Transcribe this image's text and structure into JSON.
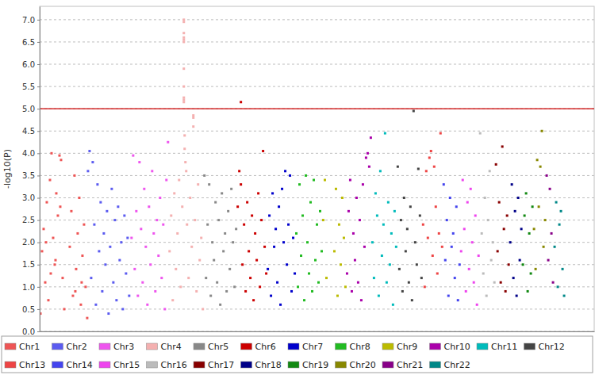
{
  "chart_data": {
    "type": "scatter",
    "y_label": "-log10(P)",
    "xlim": [
      0,
      700
    ],
    "ylim": [
      0,
      7.3
    ],
    "yticks": [
      {
        "value": 0,
        "label": "0.0"
      },
      0.5,
      {
        "value": 1,
        "label": "1.0"
      },
      1.5,
      {
        "value": 2,
        "label": "2.0"
      },
      2.5,
      {
        "value": 3,
        "label": "3.0"
      },
      3.5,
      {
        "value": 4,
        "label": "4.0"
      },
      4.5,
      {
        "value": 5,
        "label": "5.0"
      },
      5.5,
      {
        "value": 6,
        "label": "6.0"
      },
      6.5,
      {
        "value": 7,
        "label": "7.0"
      }
    ],
    "tick_labels": "y",
    "grid": true,
    "legend": "bottom",
    "marker": "square",
    "threshold": 5,
    "series": [
      {
        "name": "Chr1",
        "color": "#ee5555",
        "x": [
          1,
          3,
          5,
          7,
          9,
          11,
          13,
          15,
          17,
          19,
          21,
          23,
          25,
          27,
          29,
          31,
          38,
          40,
          42,
          44,
          46,
          48,
          50,
          52,
          54,
          56,
          58,
          60,
          8,
          14,
          20,
          26,
          45,
          53
        ],
        "values": [
          0.4,
          1.8,
          2.3,
          1.1,
          2.9,
          0.7,
          3.4,
          4.0,
          2.1,
          1.5,
          3.1,
          2.6,
          3.95,
          3.85,
          1.2,
          0.5,
          1.9,
          2.7,
          0.8,
          3.5,
          1.4,
          2.2,
          3.0,
          0.6,
          1.7,
          2.4,
          1.0,
          0.3,
          2.0,
          1.3,
          1.6,
          2.8,
          0.9,
          1.1
        ]
      },
      {
        "name": "Chr2",
        "color": "#5b5bf0",
        "x": [
          61,
          63,
          65,
          67,
          69,
          71,
          73,
          75,
          77,
          79,
          81,
          83,
          85,
          87,
          89,
          91,
          93,
          95,
          97,
          99,
          101,
          103,
          105,
          107,
          109,
          111,
          113
        ],
        "values": [
          3.6,
          4.05,
          1.2,
          3.8,
          2.4,
          0.6,
          3.3,
          1.8,
          2.9,
          0.9,
          2.2,
          1.5,
          2.7,
          0.4,
          1.9,
          3.2,
          1.1,
          2.5,
          0.7,
          2.8,
          1.6,
          2.0,
          0.5,
          2.6,
          1.3,
          2.1,
          0.8
        ]
      },
      {
        "name": "Chr3",
        "color": "#ee55ee",
        "x": [
          116,
          118,
          120,
          122,
          124,
          126,
          128,
          130,
          132,
          134,
          136,
          138,
          140,
          142,
          144,
          146,
          148,
          150,
          152,
          154,
          156,
          158,
          160,
          162
        ],
        "values": [
          2.1,
          3.95,
          1.4,
          2.7,
          0.8,
          3.8,
          2.3,
          1.1,
          3.2,
          1.9,
          0.6,
          2.8,
          1.5,
          3.6,
          2.2,
          0.9,
          2.5,
          1.7,
          3.0,
          1.2,
          2.4,
          0.5,
          3.4,
          4.25
        ]
      },
      {
        "name": "Chr4",
        "color": "#f4b0b0",
        "x": [
          164,
          166,
          168,
          170,
          172,
          174,
          176,
          178,
          180,
          182,
          182,
          182,
          182,
          182,
          182,
          182,
          182,
          182,
          182,
          182,
          183,
          183,
          184,
          185,
          186,
          188,
          190,
          192,
          194,
          194,
          194,
          196,
          198,
          200,
          202,
          204,
          206
        ],
        "values": [
          1.8,
          2.6,
          0.7,
          3.1,
          1.4,
          2.2,
          3.4,
          1.0,
          2.8,
          7.0,
          6.95,
          6.7,
          6.6,
          6.55,
          6.5,
          5.9,
          5.5,
          5.25,
          5.2,
          5.15,
          4.4,
          4.1,
          3.8,
          3.6,
          2.4,
          1.2,
          3.0,
          1.9,
          4.85,
          4.8,
          4.6,
          2.5,
          0.9,
          3.3,
          1.6,
          2.1,
          0.5
        ]
      },
      {
        "name": "Chr5",
        "color": "#888888",
        "x": [
          208,
          210,
          212,
          214,
          216,
          218,
          220,
          222,
          224,
          226,
          228,
          230,
          232,
          234,
          236,
          238,
          240,
          242,
          244,
          246,
          248
        ],
        "values": [
          3.5,
          1.2,
          2.4,
          3.3,
          0.8,
          2.0,
          1.6,
          2.9,
          1.1,
          2.5,
          0.6,
          3.1,
          1.8,
          2.2,
          0.9,
          2.7,
          1.4,
          3.2,
          2.0,
          1.0,
          2.3
        ]
      },
      {
        "name": "Chr6",
        "color": "#cc0000",
        "x": [
          250,
          252,
          254,
          256,
          258,
          260,
          262,
          264,
          266,
          268,
          270,
          272,
          274,
          276,
          278,
          280,
          282,
          284,
          286,
          254
        ],
        "values": [
          2.8,
          3.6,
          3.3,
          1.5,
          2.4,
          0.9,
          2.9,
          1.8,
          1.2,
          2.6,
          0.7,
          2.2,
          1.6,
          3.1,
          1.0,
          2.5,
          4.05,
          1.9,
          1.3,
          5.15
        ]
      },
      {
        "name": "Chr7",
        "color": "#0000cc",
        "x": [
          288,
          290,
          292,
          294,
          296,
          298,
          300,
          302,
          304,
          306,
          308,
          310,
          312,
          314,
          316,
          318,
          320,
          322
        ],
        "values": [
          1.4,
          2.6,
          0.8,
          3.1,
          1.9,
          2.3,
          1.1,
          2.8,
          0.6,
          3.2,
          2.0,
          3.6,
          1.5,
          2.4,
          3.5,
          0.9,
          2.1,
          1.3
        ]
      },
      {
        "name": "Chr8",
        "color": "#22bb22",
        "x": [
          324,
          326,
          328,
          330,
          332,
          334,
          336,
          338,
          340,
          342,
          344,
          346,
          348,
          350,
          352,
          354,
          356
        ],
        "values": [
          2.2,
          1.0,
          3.3,
          1.7,
          2.6,
          0.7,
          3.5,
          2.0,
          1.3,
          2.9,
          0.9,
          3.4,
          1.6,
          2.4,
          1.1,
          2.7,
          1.8
        ]
      },
      {
        "name": "Chr9",
        "color": "#bbbb00",
        "x": [
          358,
          360,
          362,
          372,
          374,
          376,
          378,
          380,
          382,
          384,
          386
        ],
        "values": [
          2.5,
          3.4,
          1.2,
          1.8,
          3.2,
          0.8,
          2.4,
          1.5,
          3.0,
          2.1,
          1.0
        ]
      },
      {
        "name": "Chr10",
        "color": "#aa00aa",
        "x": [
          388,
          390,
          392,
          394,
          396,
          398,
          400,
          402,
          404,
          406,
          408,
          410,
          412,
          414,
          416,
          418
        ],
        "values": [
          1.3,
          2.7,
          3.4,
          0.9,
          2.2,
          1.6,
          3.0,
          1.1,
          2.5,
          0.7,
          3.3,
          1.9,
          3.9,
          4.0,
          3.7,
          4.35
        ]
      },
      {
        "name": "Chr11",
        "color": "#00bbbb",
        "x": [
          420,
          422,
          424,
          426,
          428,
          430,
          432,
          434,
          436,
          438,
          440,
          442,
          444,
          446,
          448,
          450
        ],
        "values": [
          2.0,
          1.2,
          3.1,
          2.6,
          0.8,
          3.6,
          1.7,
          2.4,
          4.45,
          1.1,
          2.9,
          1.5,
          2.2,
          0.6,
          2.7,
          1.9
        ]
      },
      {
        "name": "Chr12",
        "color": "#444444",
        "x": [
          452,
          454,
          456,
          458,
          460,
          462,
          464,
          466,
          468,
          470,
          472,
          474,
          476,
          478,
          480,
          482
        ],
        "values": [
          3.7,
          1.4,
          2.5,
          0.9,
          3.0,
          1.8,
          2.3,
          1.1,
          2.8,
          0.7,
          4.95,
          2.0,
          1.5,
          3.65,
          2.6,
          1.2
        ]
      },
      {
        "name": "Chr13",
        "color": "#ee4444",
        "x": [
          484,
          486,
          488,
          490,
          492,
          494,
          496,
          498,
          500,
          502,
          504,
          506,
          508
        ],
        "values": [
          2.4,
          1.0,
          3.6,
          2.1,
          3.9,
          4.05,
          1.7,
          3.7,
          2.8,
          1.3,
          2.2,
          4.45,
          1.9
        ]
      },
      {
        "name": "Chr14",
        "color": "#4444ee",
        "x": [
          510,
          512,
          514,
          516,
          518,
          520,
          522,
          524,
          526,
          528,
          530
        ],
        "values": [
          3.3,
          1.6,
          2.5,
          0.8,
          3.0,
          1.9,
          2.2,
          1.2,
          2.8,
          0.7,
          1.5
        ]
      },
      {
        "name": "Chr15",
        "color": "#ee44ee",
        "x": [
          532,
          534,
          536,
          538,
          540,
          542,
          544,
          546,
          548,
          550,
          552,
          554
        ],
        "values": [
          1.8,
          3.4,
          2.3,
          0.9,
          2.9,
          1.4,
          3.2,
          2.0,
          1.1,
          2.6,
          0.6,
          1.7
        ]
      },
      {
        "name": "Chr16",
        "color": "#bbbbbb",
        "x": [
          556,
          558,
          560,
          562,
          564,
          566,
          568,
          570,
          572,
          574
        ],
        "values": [
          4.45,
          2.2,
          1.3,
          3.0,
          0.8,
          2.5,
          3.6,
          1.6,
          2.0,
          1.1
        ]
      },
      {
        "name": "Chr17",
        "color": "#880000",
        "x": [
          576,
          578,
          580,
          582,
          584,
          586,
          588,
          590,
          592
        ],
        "values": [
          3.75,
          1.8,
          2.9,
          1.1,
          4.15,
          2.3,
          0.9,
          2.6,
          1.5
        ]
      },
      {
        "name": "Chr18",
        "color": "#000088",
        "x": [
          594,
          596,
          598,
          600,
          602,
          604,
          606,
          608
        ],
        "values": [
          2.0,
          3.3,
          1.2,
          2.7,
          0.8,
          3.0,
          1.6,
          2.3
        ]
      },
      {
        "name": "Chr19",
        "color": "#118811",
        "x": [
          610,
          612,
          614,
          616,
          618,
          620,
          622
        ],
        "values": [
          1.5,
          2.6,
          3.1,
          0.9,
          2.2,
          1.3,
          2.8
        ]
      },
      {
        "name": "Chr20",
        "color": "#888800",
        "x": [
          624,
          626,
          628,
          630,
          632,
          634,
          636,
          638
        ],
        "values": [
          2.3,
          1.4,
          3.85,
          2.8,
          3.7,
          4.5,
          1.9,
          2.5
        ]
      },
      {
        "name": "Chr21",
        "color": "#880088",
        "x": [
          640,
          642,
          644,
          646,
          648
        ],
        "values": [
          3.5,
          1.6,
          3.2,
          2.2,
          1.1
        ]
      },
      {
        "name": "Chr22",
        "color": "#008888",
        "x": [
          650,
          652,
          654,
          656,
          658,
          660,
          662
        ],
        "values": [
          1.9,
          2.9,
          1.0,
          2.4,
          2.7,
          1.4,
          0.8
        ]
      }
    ]
  }
}
